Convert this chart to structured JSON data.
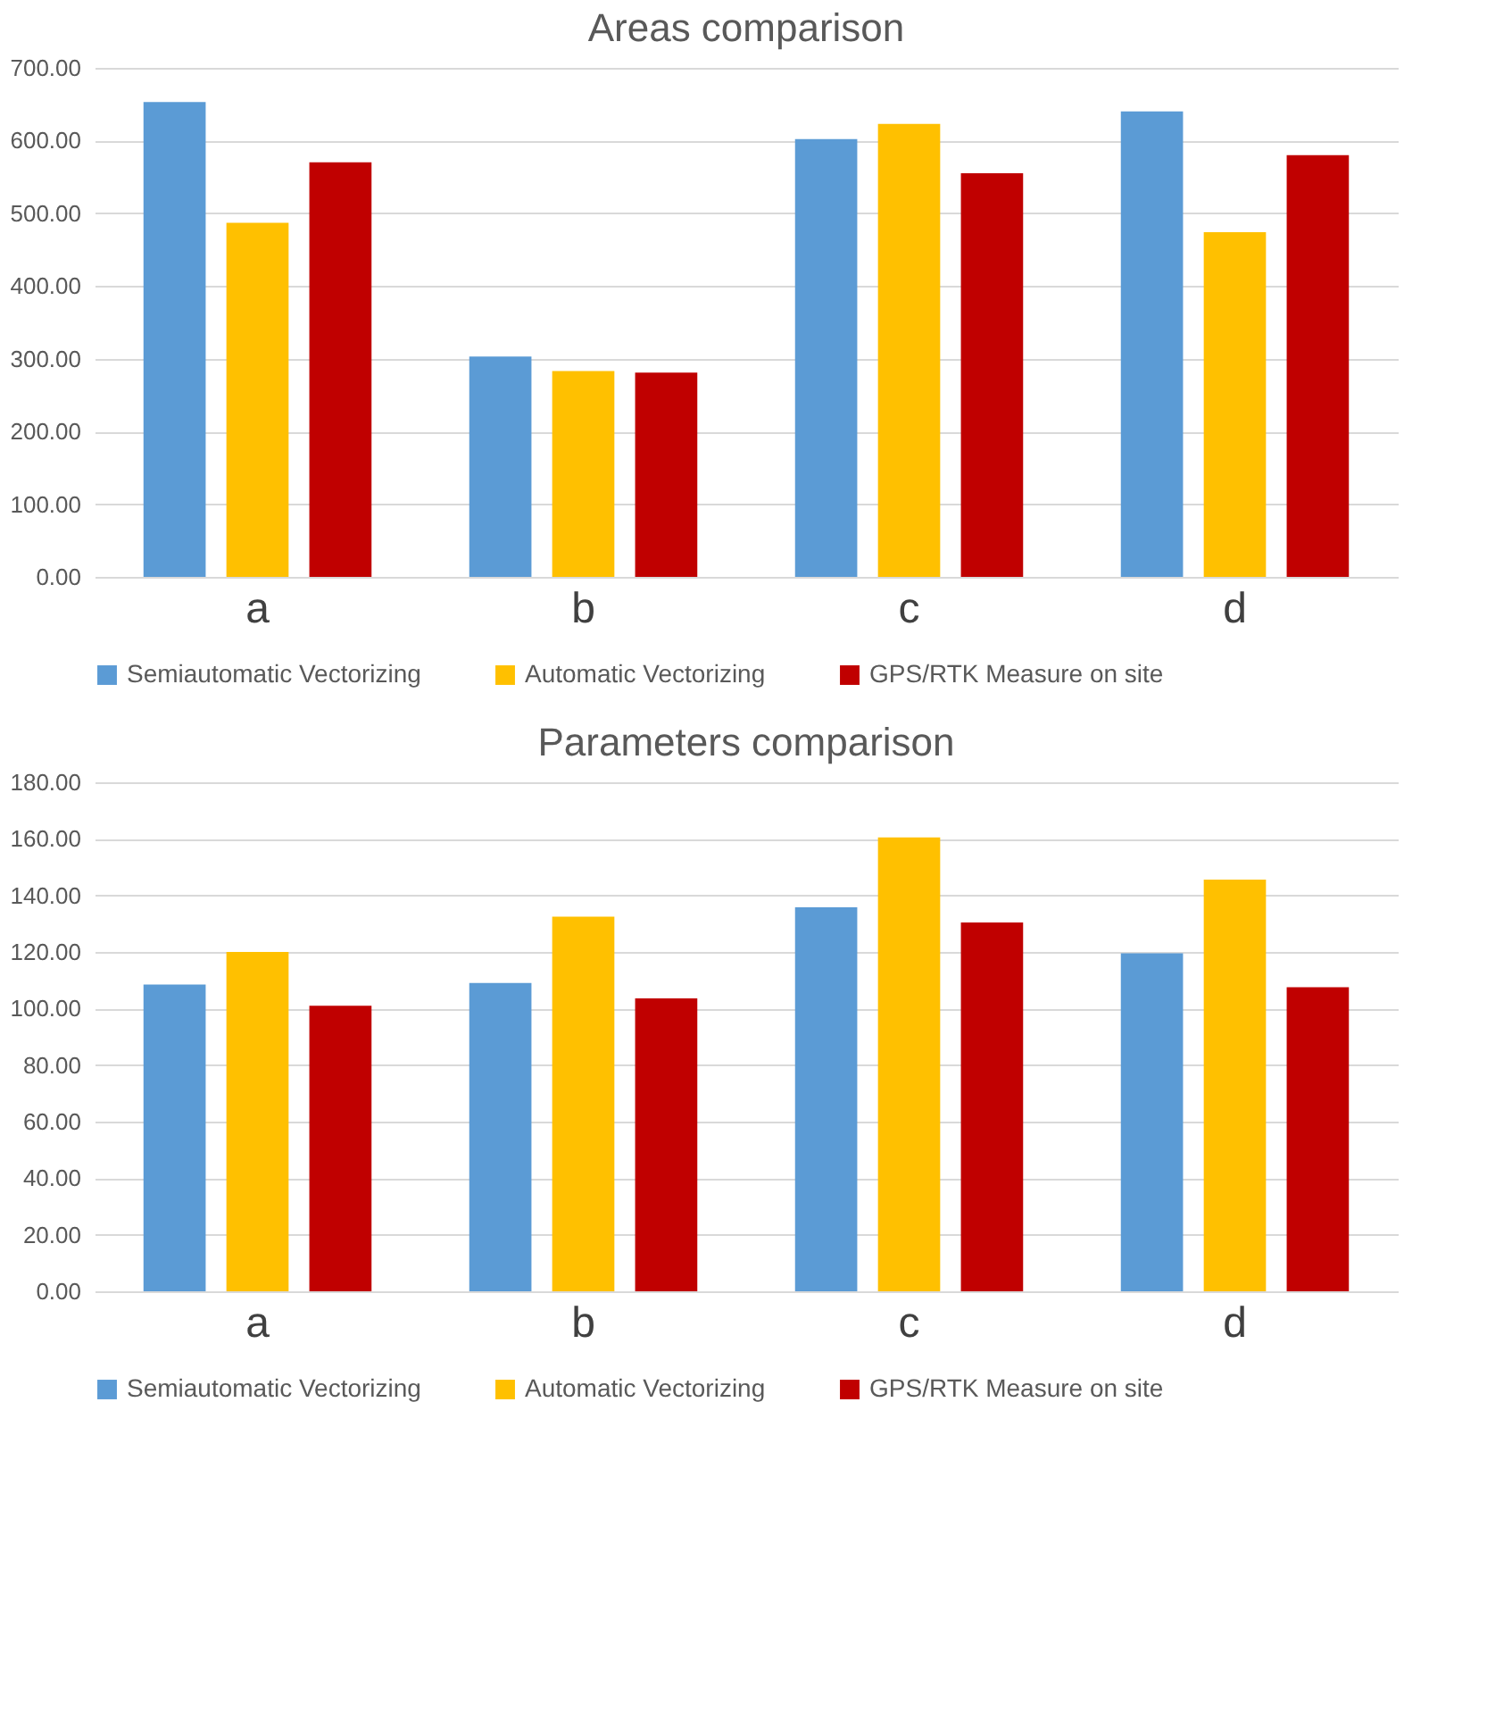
{
  "chart_data": [
    {
      "type": "bar",
      "title": "Areas comparison",
      "categories": [
        "a",
        "b",
        "c",
        "d"
      ],
      "series": [
        {
          "name": "Semiautomatic Vectorizing",
          "color": "#5b9bd5",
          "values": [
            653,
            303,
            602,
            640
          ]
        },
        {
          "name": "Automatic Vectorizing",
          "color": "#ffc000",
          "values": [
            487,
            283,
            623,
            474
          ]
        },
        {
          "name": "GPS/RTK Measure on site",
          "color": "#c00000",
          "values": [
            570,
            281,
            555,
            580
          ]
        }
      ],
      "ylim": [
        0,
        700
      ],
      "yticks": [
        {
          "value": 0,
          "label": "0.00"
        },
        {
          "value": 100,
          "label": "100.00"
        },
        {
          "value": 200,
          "label": "200.00"
        },
        {
          "value": 300,
          "label": "300.00"
        },
        {
          "value": 400,
          "label": "400.00"
        },
        {
          "value": 500,
          "label": "500.00"
        },
        {
          "value": 600,
          "label": "600.00"
        },
        {
          "value": 700,
          "label": "700.00"
        }
      ],
      "grid": "y",
      "legend": "bottom"
    },
    {
      "type": "bar",
      "title": "Parameters comparison",
      "categories": [
        "a",
        "b",
        "c",
        "d"
      ],
      "series": [
        {
          "name": "Semiautomatic Vectorizing",
          "color": "#5b9bd5",
          "values": [
            108.5,
            109,
            135.8,
            119.5
          ]
        },
        {
          "name": "Automatic Vectorizing",
          "color": "#ffc000",
          "values": [
            120,
            132.5,
            160.5,
            145.6
          ]
        },
        {
          "name": "GPS/RTK Measure on site",
          "color": "#c00000",
          "values": [
            101,
            103.6,
            130.4,
            107.5
          ]
        }
      ],
      "ylim": [
        0,
        180
      ],
      "yticks": [
        {
          "value": 0,
          "label": "0.00"
        },
        {
          "value": 20,
          "label": "20.00"
        },
        {
          "value": 40,
          "label": "40.00"
        },
        {
          "value": 60,
          "label": "60.00"
        },
        {
          "value": 80,
          "label": "80.00"
        },
        {
          "value": 100,
          "label": "100.00"
        },
        {
          "value": 120,
          "label": "120.00"
        },
        {
          "value": 140,
          "label": "140.00"
        },
        {
          "value": 160,
          "label": "160.00"
        },
        {
          "value": 180,
          "label": "180.00"
        }
      ],
      "grid": "y",
      "legend": "bottom"
    }
  ]
}
